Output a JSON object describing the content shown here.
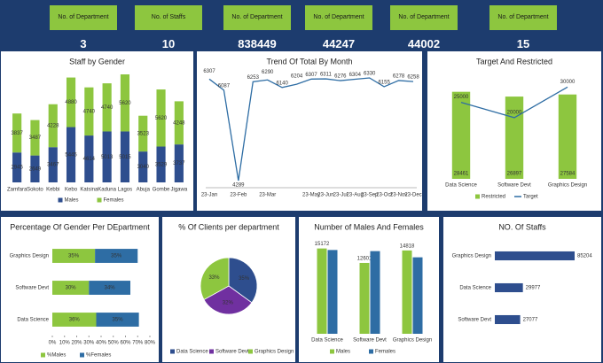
{
  "kpis": [
    {
      "label": "No. of Department",
      "value": 3
    },
    {
      "label": "No. of Staffs",
      "value": 10
    },
    {
      "label": "No. of Department",
      "value": 838449
    },
    {
      "label": "No. of Department",
      "value": 44247
    },
    {
      "label": "No. of Department",
      "value": 44002
    },
    {
      "label": "No. of Department",
      "value": 15
    }
  ],
  "chart_data": [
    {
      "type": "bar",
      "stacked": true,
      "title": "Staff by Gender",
      "categories": [
        "Zamfara",
        "Sokoto",
        "Kebbi",
        "Kebo",
        "Katsina",
        "Kaduna",
        "Lagos",
        "Abuja",
        "Gombe",
        "Jigawa"
      ],
      "series": [
        {
          "name": "Males",
          "color": "#2e4e8e",
          "values": [
            2945,
            2649,
            3467,
            5445,
            4614,
            5013,
            5015,
            3040,
            3529,
            3737
          ]
        },
        {
          "name": "Females",
          "color": "#8dc63f",
          "values": [
            3837,
            3487,
            4228,
            4880,
            4740,
            4740,
            5620,
            3523,
            5620,
            4248
          ]
        }
      ]
    },
    {
      "type": "line",
      "title": "Trend Of Total By Month",
      "categories": [
        "23-Jan",
        null,
        "23-Feb",
        null,
        "23-Mar",
        null,
        null,
        "23-May",
        "23-Jun",
        "23-Jul",
        "23-Aug",
        "23-Sep",
        "23-Oct",
        "23-Nov",
        "23-Dec"
      ],
      "values": [
        6307,
        6087,
        4289,
        6253,
        6290,
        6140,
        6204,
        6307,
        6311,
        6276,
        6304,
        6330,
        6155,
        6278,
        6258
      ],
      "color": "#2e6da4"
    },
    {
      "type": "combo",
      "title": "Target And Restricted",
      "categories": [
        "Data Science",
        "Software Devt",
        "Graphics Design"
      ],
      "series": [
        {
          "name": "Restricted",
          "color": "#8dc63f",
          "mark": "bar",
          "values": [
            28461,
            26897,
            27584
          ]
        },
        {
          "name": "Target",
          "color": "#2e6da4",
          "mark": "line",
          "values": [
            25000,
            20000,
            30000
          ]
        }
      ]
    },
    {
      "type": "bar",
      "orientation": "horizontal",
      "stacked": true,
      "title": "Percentage Of Gender Per DEpartment",
      "categories": [
        "Graphics Design",
        "Software Devt",
        "Data Science"
      ],
      "series": [
        {
          "name": "%Males",
          "color": "#8dc63f",
          "values": [
            35,
            30,
            36
          ],
          "value_labels": [
            "35%",
            "30%",
            "36%"
          ]
        },
        {
          "name": "%Females",
          "color": "#2e6da4",
          "values": [
            35,
            34,
            35
          ],
          "value_labels": [
            "35%",
            "34%",
            "35%"
          ]
        }
      ],
      "xlim": [
        0,
        80
      ],
      "xticks": [
        {
          "value": 0,
          "label": "0%"
        },
        {
          "value": 10,
          "label": "10%"
        },
        {
          "value": 20,
          "label": "20%"
        },
        {
          "value": 30,
          "label": "30%"
        },
        {
          "value": 40,
          "label": "40%"
        },
        {
          "value": 50,
          "label": "50%"
        },
        {
          "value": 60,
          "label": "60%"
        },
        {
          "value": 70,
          "label": "70%"
        },
        {
          "value": 80,
          "label": "80%"
        }
      ]
    },
    {
      "type": "pie",
      "title": "% Of Clients per department",
      "categories": [
        "Data Science",
        "Software Devt",
        "Graphics Design"
      ],
      "values": [
        35,
        32,
        33
      ],
      "value_labels": [
        "35%",
        "32%",
        "33%"
      ],
      "colors": [
        "#2e4e8e",
        "#7030a0",
        "#8dc63f"
      ]
    },
    {
      "type": "bar",
      "title": "Number of Males And Females",
      "categories": [
        "Data Science",
        "Software Devt",
        "Graphics Design"
      ],
      "series": [
        {
          "name": "Males",
          "color": "#8dc63f",
          "labels": true,
          "values": [
            15172,
            12601,
            14818
          ]
        },
        {
          "name": "Females",
          "color": "#2e6da4",
          "labels": false,
          "values": [
            14900,
            14700,
            13600
          ]
        }
      ]
    },
    {
      "type": "bar",
      "orientation": "horizontal",
      "title": "NO. Of Staffs",
      "categories": [
        "Graphics Design",
        "Data Science",
        "Software Devt"
      ],
      "values": [
        85204,
        29977,
        27077
      ],
      "color": "#2e4e8e"
    }
  ]
}
